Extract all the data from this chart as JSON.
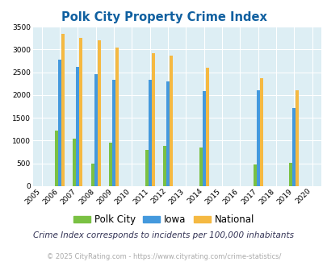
{
  "title": "Polk City Property Crime Index",
  "years": [
    2005,
    2006,
    2007,
    2008,
    2009,
    2010,
    2011,
    2012,
    2013,
    2014,
    2015,
    2016,
    2017,
    2018,
    2019,
    2020
  ],
  "polk_city": [
    0,
    1220,
    1040,
    500,
    960,
    0,
    800,
    890,
    0,
    840,
    0,
    0,
    470,
    0,
    510,
    0
  ],
  "iowa": [
    0,
    2780,
    2620,
    2460,
    2340,
    0,
    2340,
    2290,
    0,
    2080,
    0,
    0,
    2110,
    0,
    1720,
    0
  ],
  "national": [
    0,
    3340,
    3260,
    3200,
    3040,
    0,
    2920,
    2860,
    0,
    2590,
    0,
    0,
    2370,
    0,
    2110,
    0
  ],
  "polk_city_color": "#7ac143",
  "iowa_color": "#4499dd",
  "national_color": "#f5b942",
  "bg_color": "#ddeef4",
  "title_color": "#1060a0",
  "subtitle": "Crime Index corresponds to incidents per 100,000 inhabitants",
  "footer": "© 2025 CityRating.com - https://www.cityrating.com/crime-statistics/",
  "ylabel_max": 3500,
  "yticks": [
    0,
    500,
    1000,
    1500,
    2000,
    2500,
    3000,
    3500
  ],
  "bar_width": 0.18
}
